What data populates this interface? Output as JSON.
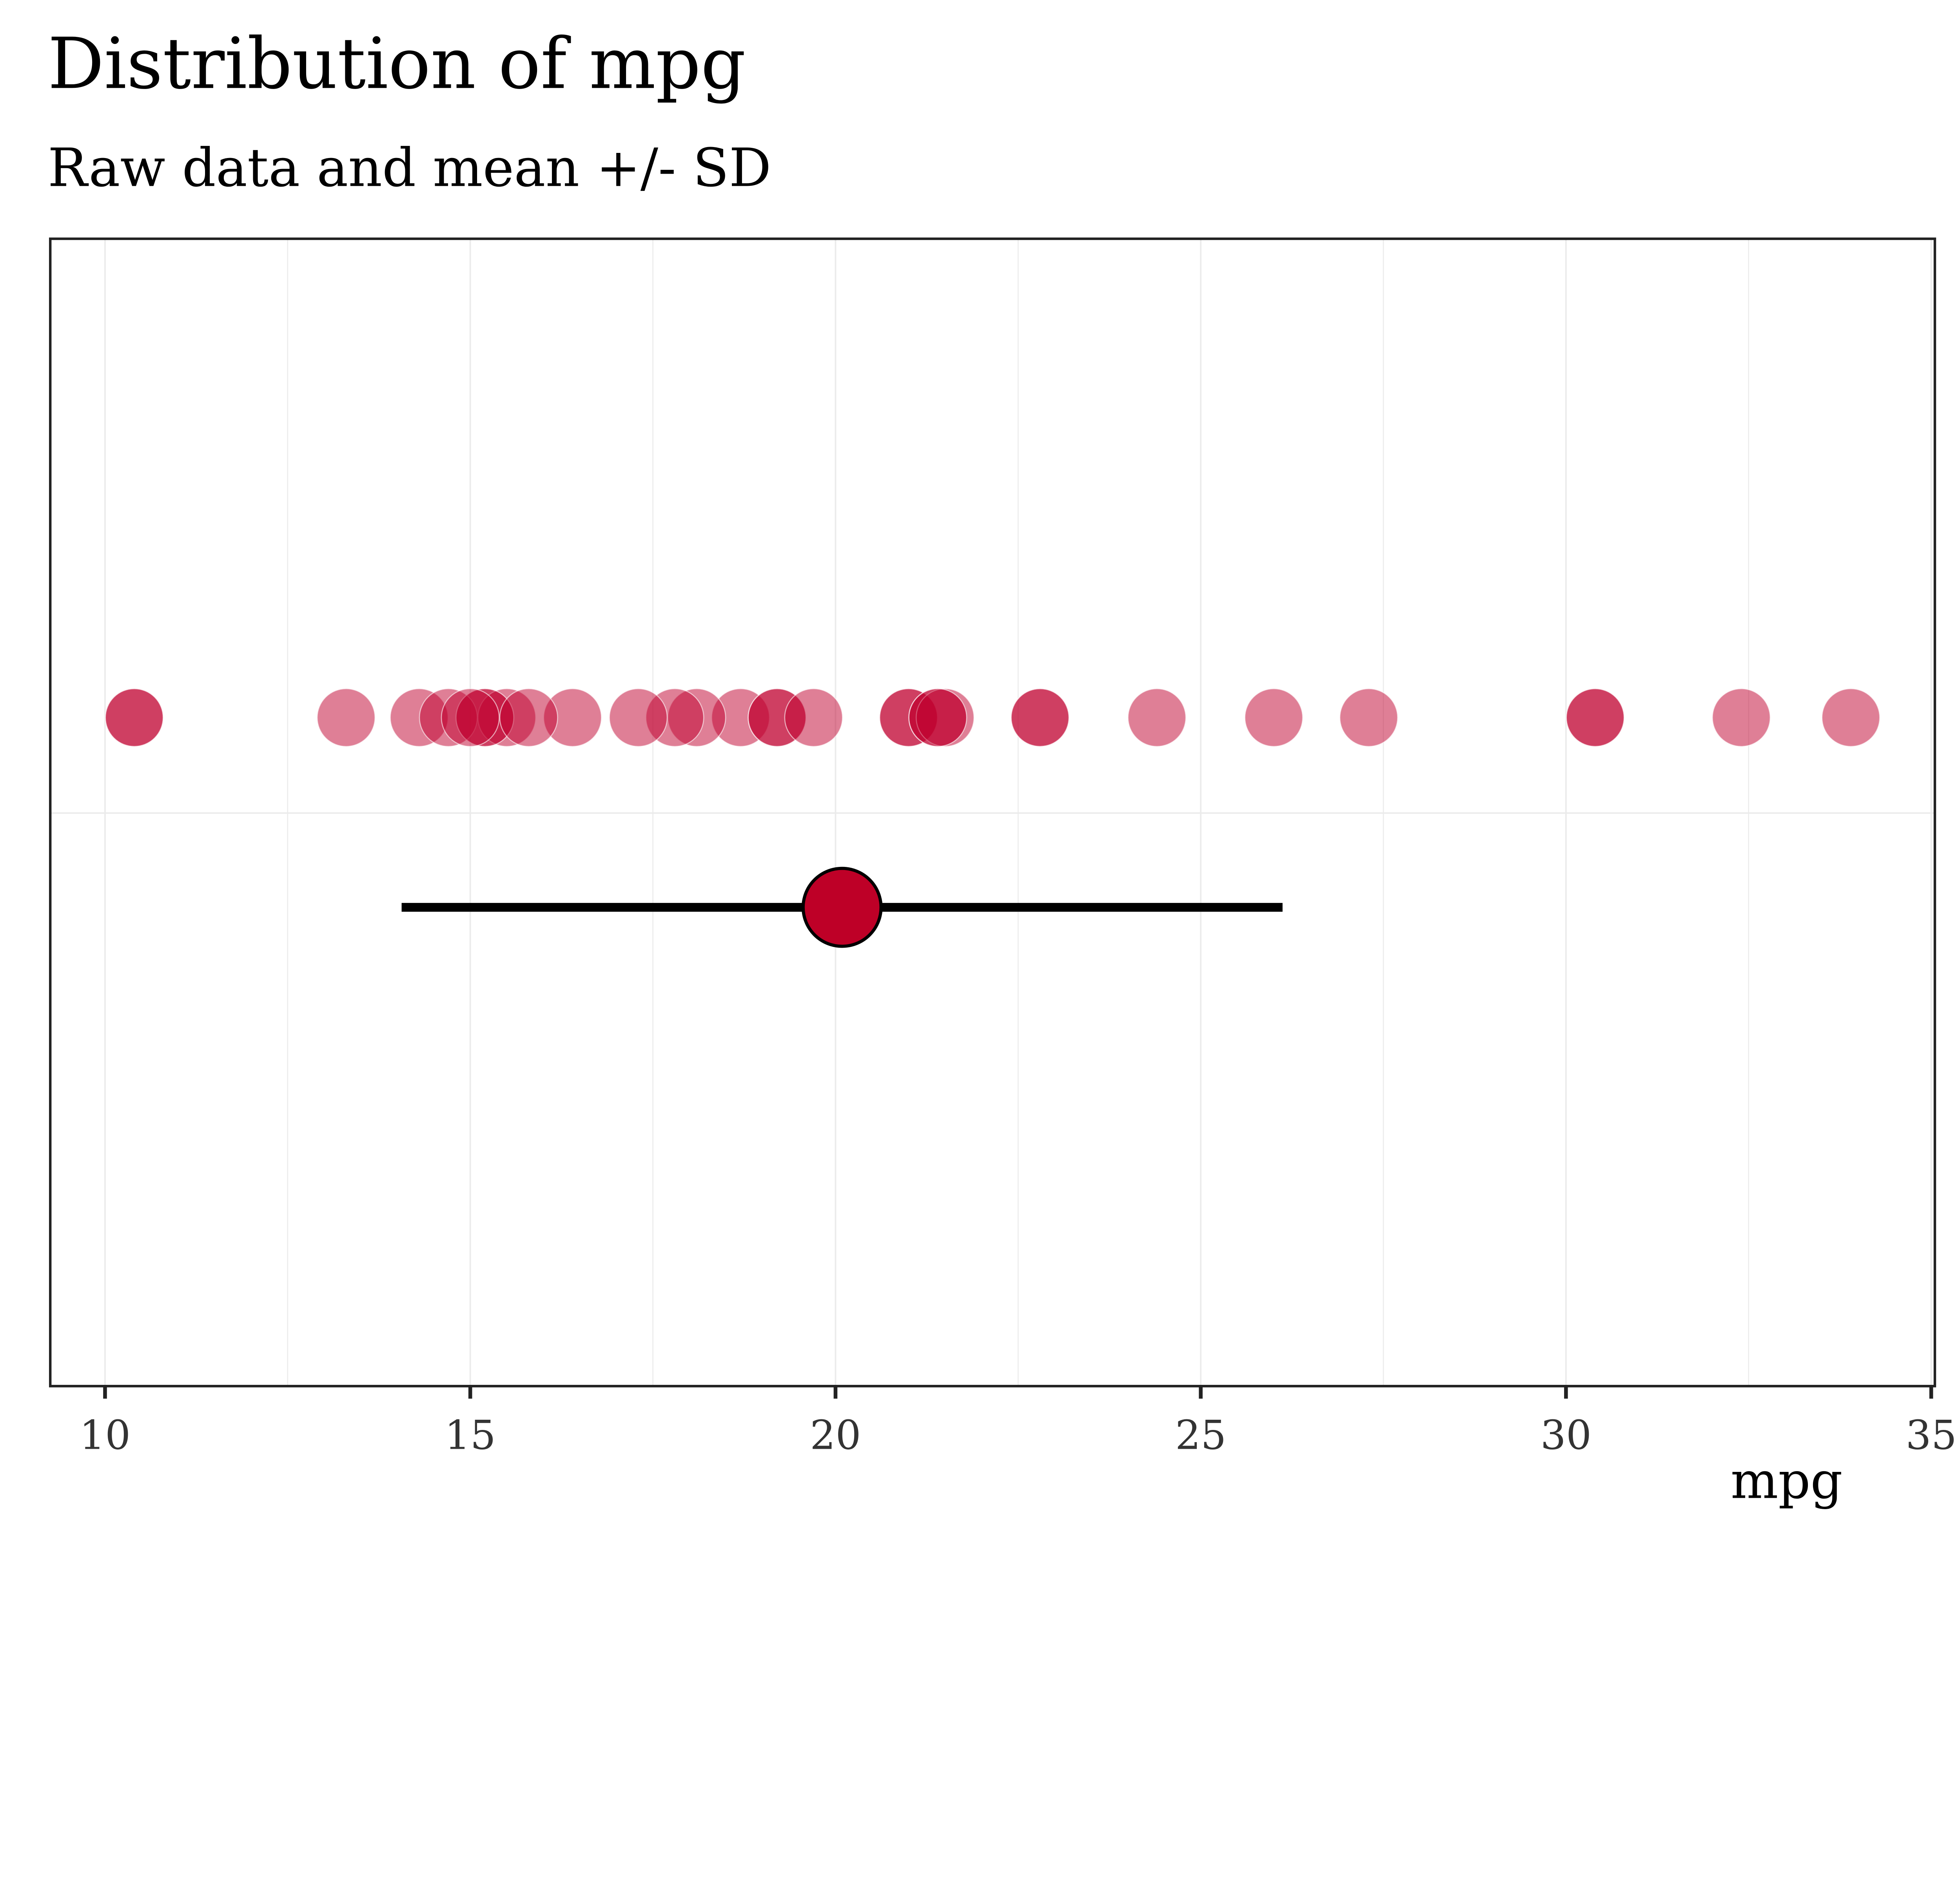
{
  "chart_data": {
    "type": "scatter",
    "title": "Distribution of mpg",
    "subtitle": "Raw data and mean +/- SD",
    "xlabel": "mpg",
    "ylabel": "",
    "xlim": [
      9.25,
      35.05
    ],
    "xticks": [
      10,
      15,
      20,
      25,
      30,
      35
    ],
    "tick_labels": [
      "10",
      "15",
      "20",
      "25",
      "30",
      "35"
    ],
    "grid": true,
    "raw_points": [
      21.0,
      21.0,
      22.8,
      21.4,
      18.7,
      18.1,
      14.3,
      24.4,
      22.8,
      19.2,
      17.8,
      16.4,
      17.3,
      15.2,
      10.4,
      10.4,
      14.7,
      32.4,
      30.4,
      33.9,
      21.5,
      15.5,
      15.2,
      13.3,
      19.2,
      27.3,
      26.0,
      30.4,
      15.8,
      19.7,
      15.0,
      21.4
    ],
    "summary": {
      "mean": 20.09,
      "sd": 6.03,
      "lower": 14.06,
      "upper": 26.12
    },
    "colors": {
      "points": "#C0002E",
      "mean_fill": "#BE0027",
      "errorbar": "#000000"
    }
  }
}
